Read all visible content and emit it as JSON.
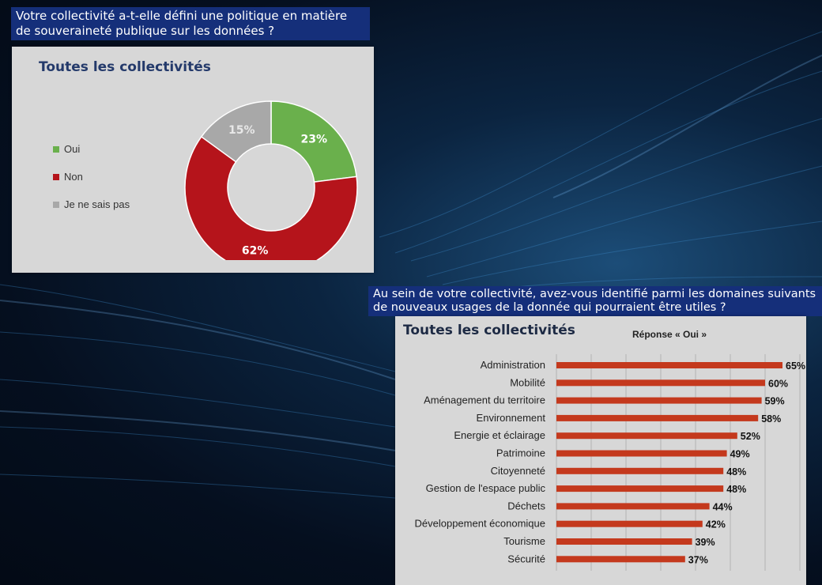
{
  "question1": "Votre collectivité a-t-elle défini une politique en matière de souveraineté publique sur les données ?",
  "question2": "Au sein de votre collectivité, avez-vous identifié parmi les domaines suivants de nouveaux usages de la donnée qui pourraient être utiles ?",
  "chart_data": [
    {
      "type": "pie",
      "title": "Toutes les collectivités",
      "categories": [
        "Oui",
        "Non",
        "Je ne sais pas"
      ],
      "values": [
        23,
        62,
        15
      ],
      "value_labels": [
        "23%",
        "62%",
        "15%"
      ],
      "colors": [
        "#6ab04c",
        "#b5141b",
        "#a8a8a8"
      ],
      "donut": true,
      "legend": "left"
    },
    {
      "type": "bar",
      "orientation": "horizontal",
      "title": "Toutes les collectivités",
      "subtitle": "Réponse « Oui »",
      "categories": [
        "Administration",
        "Mobilité",
        "Aménagement du territoire",
        "Environnement",
        "Energie et éclairage",
        "Patrimoine",
        "Citoyenneté",
        "Gestion de l'espace public",
        "Déchets",
        "Développement économique",
        "Tourisme",
        "Sécurité"
      ],
      "values": [
        65,
        60,
        59,
        58,
        52,
        49,
        48,
        48,
        44,
        42,
        39,
        37
      ],
      "value_labels": [
        "65%",
        "60%",
        "59%",
        "58%",
        "52%",
        "49%",
        "48%",
        "48%",
        "44%",
        "42%",
        "39%",
        "37%"
      ],
      "xlim": [
        0,
        70
      ],
      "grid": true,
      "color": "#c4391d"
    }
  ]
}
